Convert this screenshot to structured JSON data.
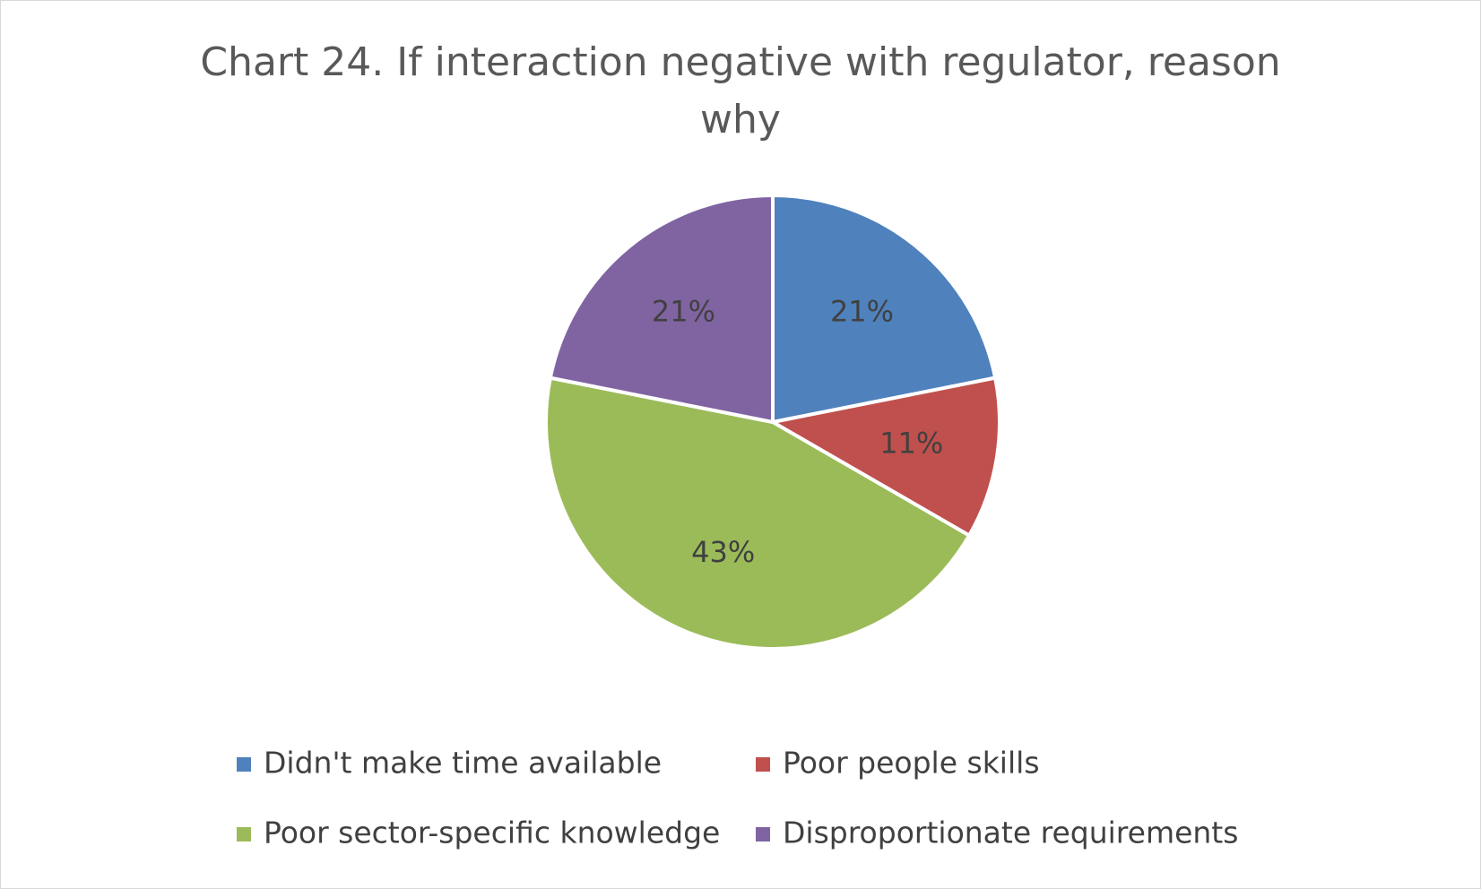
{
  "chart_data": {
    "type": "pie",
    "title": "Chart 24. If interaction negative with regulator, reason why",
    "categories": [
      "Didn't make time available",
      "Poor people skills",
      "Poor sector-specific knowledge",
      "Disproportionate requirements"
    ],
    "values": [
      21,
      11,
      43,
      21
    ],
    "value_labels": [
      "21%",
      "11%",
      "43%",
      "21%"
    ],
    "colors": [
      "#4f81bd",
      "#c0504d",
      "#9bbb59",
      "#8064a2"
    ],
    "legend": "bottom"
  }
}
